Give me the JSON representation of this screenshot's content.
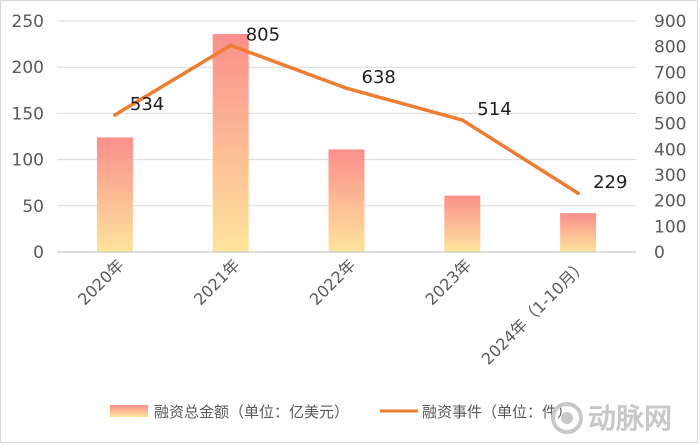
{
  "chart_data": {
    "type": "bar",
    "categories": [
      "2020年",
      "2021年",
      "2022年",
      "2023年",
      "2024年（1-10月）"
    ],
    "series": [
      {
        "name": "融资总金额（单位：亿美元）",
        "type": "bar",
        "axis": "left",
        "values": [
          124,
          236,
          111,
          61,
          42
        ]
      },
      {
        "name": "融资事件（单位：件）",
        "type": "line",
        "axis": "right",
        "values": [
          534,
          805,
          638,
          514,
          229
        ],
        "labels": [
          "534",
          "805",
          "638",
          "514",
          "229"
        ]
      }
    ],
    "y_left": {
      "ylim": [
        0,
        250
      ],
      "ticks": [
        "0",
        "50",
        "100",
        "150",
        "200",
        "250"
      ]
    },
    "y_right": {
      "ylim": [
        0,
        900
      ],
      "ticks": [
        "0",
        "100",
        "200",
        "300",
        "400",
        "500",
        "600",
        "700",
        "800",
        "900"
      ]
    },
    "grid": true,
    "legend": "bottom",
    "colors": {
      "bar_top": "#fb8f8c",
      "bar_bottom": "#fee49c",
      "line": "#ed7d31",
      "grid": "#d9d9d9"
    }
  },
  "watermark": {
    "icon": "dongmai-logo-icon",
    "text": "动脉网"
  }
}
